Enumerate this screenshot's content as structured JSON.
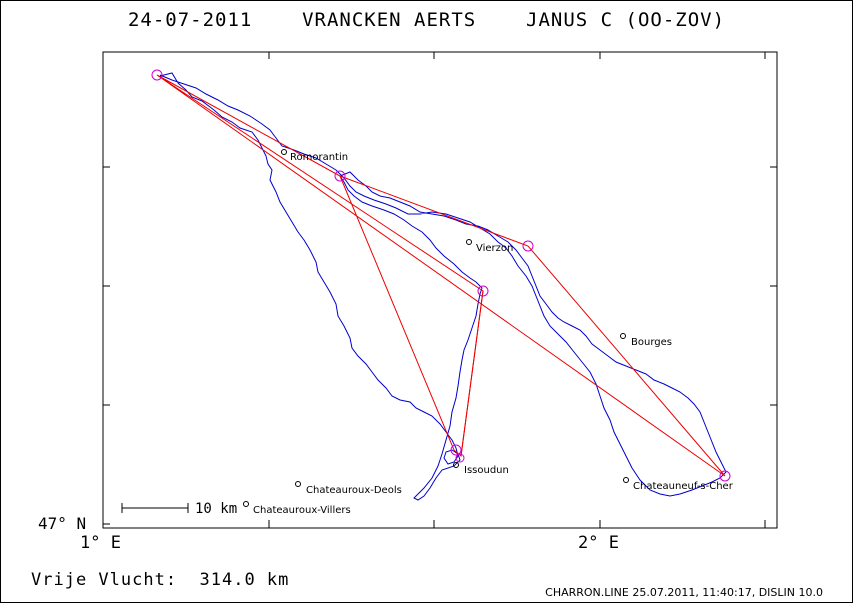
{
  "header": {
    "title": "24-07-2011    VRANCKEN AERTS    JANUS C (OO-ZOV)"
  },
  "axes": {
    "lat_label": "47° N",
    "lon_labels": [
      "1° E",
      "2° E"
    ]
  },
  "scale_bar": {
    "label": "10 km"
  },
  "cities": [
    {
      "name": "Romorantin"
    },
    {
      "name": "Vierzon"
    },
    {
      "name": "Bourges"
    },
    {
      "name": "Issoudun"
    },
    {
      "name": "Chateauroux-Deols"
    },
    {
      "name": "Chateauroux-Villers"
    },
    {
      "name": "Chateauneuf-s-Cher"
    }
  ],
  "footer": {
    "distance_label": "Vrije Vlucht:  314.0 km",
    "file_info": "CHARRON.LINE 25.07.2011, 11:40:17, DISLIN 10.0"
  },
  "colors": {
    "track": "#0000cc",
    "task_line": "#ee0000",
    "turnpoint": "#cc00cc",
    "frame": "#000000"
  }
}
